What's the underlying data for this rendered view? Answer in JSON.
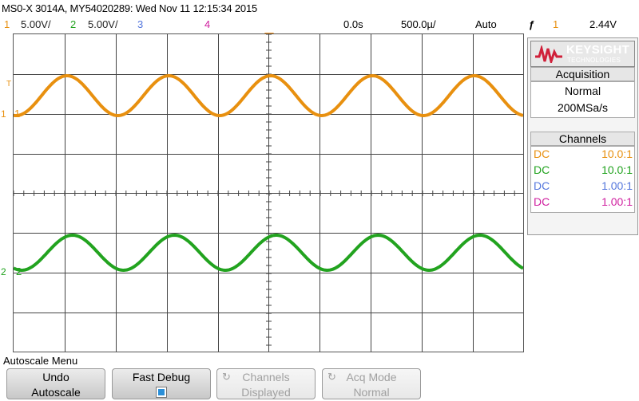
{
  "title": "MS0-X 3014A, MY54020289: Wed Nov 11 12:15:34 2015",
  "status": {
    "ch1_num": "1",
    "ch1_scale": "5.00V/",
    "ch2_num": "2",
    "ch2_scale": "5.00V/",
    "ch3_num": "3",
    "ch4_num": "4",
    "time_delay": "0.0s",
    "time_scale": "500.0µ/",
    "trigger_mode": "Auto",
    "trigger_icon": "ƒ",
    "trigger_source": "1",
    "trigger_level": "2.44V"
  },
  "colors": {
    "ch1": "#e8900f",
    "ch2": "#22a31f",
    "ch3": "#5577dd",
    "ch4": "#d020a0",
    "brand": "#d0203a"
  },
  "markers": {
    "trigger_level": "T",
    "ch1_ground": "1",
    "ch2_ground": "2",
    "ch1_label": "1",
    "ch2_label": "2"
  },
  "logo": {
    "brand": "KEYSIGHT",
    "sub": "TECHNOLOGIES"
  },
  "acquisition": {
    "heading": "Acquisition",
    "mode": "Normal",
    "rate": "200MSa/s"
  },
  "channels": {
    "heading": "Channels",
    "rows": [
      {
        "coupling": "DC",
        "probe": "10.0:1"
      },
      {
        "coupling": "DC",
        "probe": "10.0:1"
      },
      {
        "coupling": "DC",
        "probe": "1.00:1"
      },
      {
        "coupling": "DC",
        "probe": "1.00:1"
      }
    ]
  },
  "menu": {
    "title": "Autoscale Menu",
    "softkeys": [
      {
        "line1": "Undo",
        "line2": "Autoscale",
        "enabled": true
      },
      {
        "line1": "Fast Debug",
        "line2": "",
        "enabled": true
      },
      {
        "line1": "Channels",
        "line2": "Displayed",
        "enabled": false
      },
      {
        "line1": "Acq Mode",
        "line2": "Normal",
        "enabled": false
      }
    ]
  },
  "waveforms": [
    {
      "channel": "1",
      "shape": "sine",
      "cycles": 5
    },
    {
      "channel": "2",
      "shape": "sine",
      "cycles": 5
    }
  ]
}
